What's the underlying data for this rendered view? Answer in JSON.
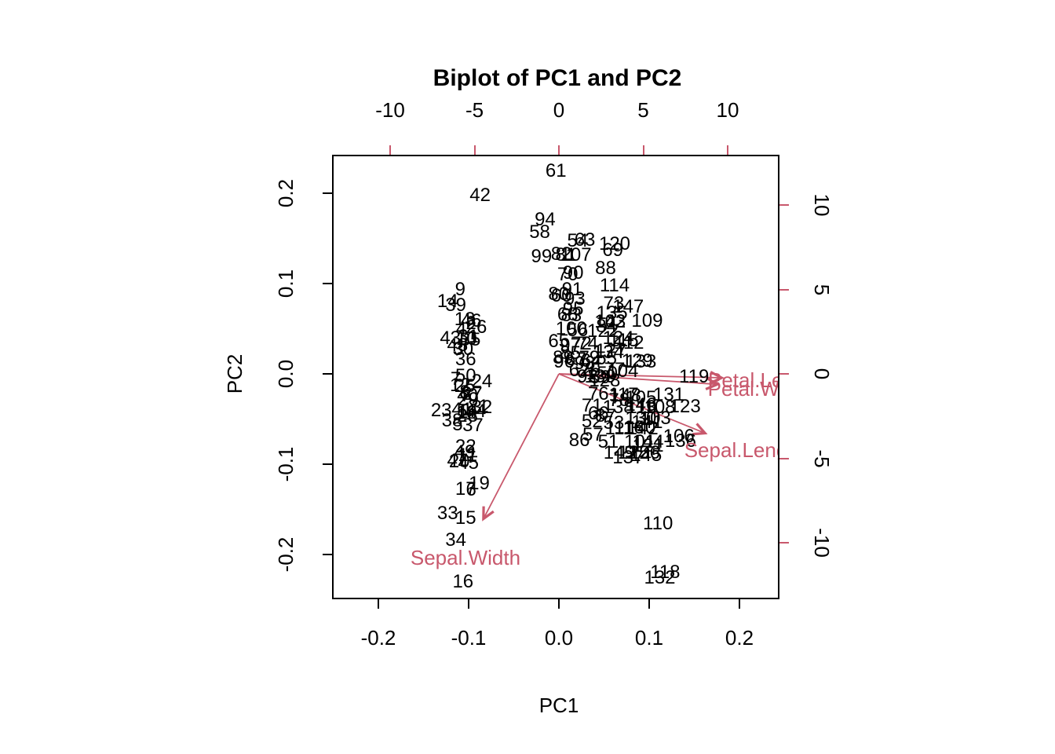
{
  "title": "Biplot of PC1 and PC2",
  "colors": {
    "frame": "#000000",
    "point_text": "#000000",
    "loading_accent": "#C8586C"
  },
  "axes": {
    "bottom": {
      "label": "PC1",
      "ticks": [
        "-0.2",
        "-0.1",
        "0.0",
        "0.1",
        "0.2"
      ]
    },
    "left": {
      "label": "PC2",
      "ticks": [
        "-0.2",
        "-0.1",
        "0.0",
        "0.1",
        "0.2"
      ]
    },
    "top": {
      "ticks": [
        "-10",
        "-5",
        "0",
        "5",
        "10"
      ]
    },
    "right": {
      "ticks": [
        "-10",
        "-5",
        "0",
        "5",
        "10"
      ]
    }
  },
  "chart_data": {
    "type": "scatter",
    "subtype": "pca-biplot",
    "title": "Biplot of PC1 and PC2",
    "xlabel": "PC1",
    "ylabel": "PC2",
    "score_axes": {
      "xlim": [
        -0.25,
        0.25
      ],
      "ylim": [
        -0.25,
        0.24
      ],
      "tick_step": 0.1
    },
    "loading_axes": {
      "xlim": [
        -13.4,
        13.1
      ],
      "ylim": [
        -13.3,
        13.0
      ],
      "tick_step": 5
    },
    "grid": false,
    "legend": "none",
    "arrow_shrink": 0.8,
    "arrows": [
      {
        "name": "Sepal.Length",
        "x": 10.9,
        "y": -4.42
      },
      {
        "name": "Sepal.Width",
        "x": -5.63,
        "y": -10.81
      },
      {
        "name": "Petal.Length",
        "x": 12.14,
        "y": -0.29
      },
      {
        "name": "Petal.Width",
        "x": 11.82,
        "y": -0.78
      }
    ],
    "points": [
      {
        "n": "1",
        "x": -0.108,
        "y": -0.041
      },
      {
        "n": "2",
        "x": -0.099,
        "y": 0.057
      },
      {
        "n": "3",
        "x": -0.113,
        "y": 0.029
      },
      {
        "n": "4",
        "x": -0.11,
        "y": 0.051
      },
      {
        "n": "5",
        "x": -0.114,
        "y": -0.055
      },
      {
        "n": "6",
        "x": -0.099,
        "y": -0.127
      },
      {
        "n": "7",
        "x": -0.116,
        "y": -0.004
      },
      {
        "n": "8",
        "x": -0.106,
        "y": -0.019
      },
      {
        "n": "9",
        "x": -0.111,
        "y": 0.095
      },
      {
        "n": "10",
        "x": -0.104,
        "y": 0.04
      },
      {
        "n": "11",
        "x": -0.103,
        "y": -0.089
      },
      {
        "n": "12",
        "x": -0.111,
        "y": -0.011
      },
      {
        "n": "13",
        "x": -0.106,
        "y": 0.062
      },
      {
        "n": "14",
        "x": -0.125,
        "y": 0.082
      },
      {
        "n": "15",
        "x": -0.105,
        "y": -0.158
      },
      {
        "n": "16",
        "x": -0.108,
        "y": -0.229
      },
      {
        "n": "17",
        "x": -0.105,
        "y": -0.126
      },
      {
        "n": "18",
        "x": -0.104,
        "y": -0.042
      },
      {
        "n": "19",
        "x": -0.09,
        "y": -0.12
      },
      {
        "n": "20",
        "x": -0.112,
        "y": -0.096
      },
      {
        "n": "21",
        "x": -0.091,
        "y": -0.035
      },
      {
        "n": "22",
        "x": -0.105,
        "y": -0.079
      },
      {
        "n": "23",
        "x": -0.132,
        "y": -0.039
      },
      {
        "n": "24",
        "x": -0.087,
        "y": -0.007
      },
      {
        "n": "25",
        "x": -0.106,
        "y": -0.012
      },
      {
        "n": "26",
        "x": -0.093,
        "y": 0.053
      },
      {
        "n": "27",
        "x": -0.098,
        "y": -0.021
      },
      {
        "n": "28",
        "x": -0.103,
        "y": -0.045
      },
      {
        "n": "29",
        "x": -0.102,
        "y": -0.027
      },
      {
        "n": "30",
        "x": -0.108,
        "y": 0.029
      },
      {
        "n": "31",
        "x": -0.102,
        "y": 0.043
      },
      {
        "n": "32",
        "x": -0.087,
        "y": -0.036
      },
      {
        "n": "33",
        "x": -0.125,
        "y": -0.153
      },
      {
        "n": "34",
        "x": -0.116,
        "y": -0.183
      },
      {
        "n": "35",
        "x": -0.1,
        "y": 0.039
      },
      {
        "n": "36",
        "x": -0.105,
        "y": 0.017
      },
      {
        "n": "37",
        "x": -0.097,
        "y": -0.056
      },
      {
        "n": "38",
        "x": -0.12,
        "y": -0.05
      },
      {
        "n": "39",
        "x": -0.116,
        "y": 0.077
      },
      {
        "n": "40",
        "x": -0.103,
        "y": -0.023
      },
      {
        "n": "41",
        "x": -0.109,
        "y": -0.038
      },
      {
        "n": "42",
        "x": -0.089,
        "y": 0.199
      },
      {
        "n": "43",
        "x": -0.122,
        "y": 0.041
      },
      {
        "n": "44",
        "x": -0.094,
        "y": -0.04
      },
      {
        "n": "45",
        "x": -0.102,
        "y": -0.097
      },
      {
        "n": "46",
        "x": -0.099,
        "y": 0.06
      },
      {
        "n": "47",
        "x": -0.114,
        "y": -0.095
      },
      {
        "n": "48",
        "x": -0.114,
        "y": 0.033
      },
      {
        "n": "49",
        "x": -0.106,
        "y": -0.085
      },
      {
        "n": "50",
        "x": -0.105,
        "y": -0.001
      },
      {
        "n": "51",
        "x": 0.053,
        "y": -0.074
      },
      {
        "n": "52",
        "x": 0.035,
        "y": -0.051
      },
      {
        "n": "53",
        "x": 0.059,
        "y": -0.053
      },
      {
        "n": "54",
        "x": 0.019,
        "y": 0.149
      },
      {
        "n": "55",
        "x": 0.051,
        "y": 0.018
      },
      {
        "n": "56",
        "x": 0.019,
        "y": 0.05
      },
      {
        "n": "57",
        "x": 0.036,
        "y": -0.066
      },
      {
        "n": "58",
        "x": -0.023,
        "y": 0.158
      },
      {
        "n": "59",
        "x": 0.044,
        "y": -0.003
      },
      {
        "n": "60",
        "x": 0.001,
        "y": 0.088
      },
      {
        "n": "61",
        "x": -0.005,
        "y": 0.226
      },
      {
        "n": "62",
        "x": 0.021,
        "y": 0.005
      },
      {
        "n": "63",
        "x": 0.027,
        "y": 0.15
      },
      {
        "n": "64",
        "x": 0.034,
        "y": 0.016
      },
      {
        "n": "65",
        "x": -0.002,
        "y": 0.037
      },
      {
        "n": "66",
        "x": 0.042,
        "y": -0.043
      },
      {
        "n": "67",
        "x": 0.017,
        "y": 0.017
      },
      {
        "n": "68",
        "x": 0.008,
        "y": 0.067
      },
      {
        "n": "69",
        "x": 0.058,
        "y": 0.138
      },
      {
        "n": "70",
        "x": 0.008,
        "y": 0.111
      },
      {
        "n": "71",
        "x": 0.035,
        "y": -0.034
      },
      {
        "n": "72",
        "x": 0.023,
        "y": 0.035
      },
      {
        "n": "73",
        "x": 0.059,
        "y": 0.079
      },
      {
        "n": "74",
        "x": 0.03,
        "y": 0.035
      },
      {
        "n": "75",
        "x": 0.033,
        "y": 0.005
      },
      {
        "n": "76",
        "x": 0.042,
        "y": -0.021
      },
      {
        "n": "77",
        "x": 0.06,
        "y": 0.006
      },
      {
        "n": "78",
        "x": 0.065,
        "y": -0.028
      },
      {
        "n": "79",
        "x": 0.032,
        "y": 0.019
      },
      {
        "n": "80",
        "x": -0.002,
        "y": 0.09
      },
      {
        "n": "81",
        "x": 0.006,
        "y": 0.133
      },
      {
        "n": "82",
        "x": 0.001,
        "y": 0.134
      },
      {
        "n": "83",
        "x": 0.012,
        "y": 0.066
      },
      {
        "n": "84",
        "x": 0.051,
        "y": 0.054
      },
      {
        "n": "85",
        "x": 0.011,
        "y": 0.024
      },
      {
        "n": "86",
        "x": 0.021,
        "y": -0.072
      },
      {
        "n": "87",
        "x": 0.05,
        "y": -0.045
      },
      {
        "n": "88",
        "x": 0.05,
        "y": 0.118
      },
      {
        "n": "89",
        "x": 0.003,
        "y": 0.019
      },
      {
        "n": "90",
        "x": 0.014,
        "y": 0.113
      },
      {
        "n": "91",
        "x": 0.013,
        "y": 0.095
      },
      {
        "n": "92",
        "x": 0.03,
        "y": -0.002
      },
      {
        "n": "93",
        "x": 0.016,
        "y": 0.084
      },
      {
        "n": "94",
        "x": -0.017,
        "y": 0.172
      },
      {
        "n": "95",
        "x": 0.014,
        "y": 0.073
      },
      {
        "n": "96",
        "x": 0.004,
        "y": 0.015
      },
      {
        "n": "97",
        "x": 0.011,
        "y": 0.033
      },
      {
        "n": "98",
        "x": 0.027,
        "y": 0.013
      },
      {
        "n": "99",
        "x": -0.021,
        "y": 0.131
      },
      {
        "n": "100",
        "x": 0.012,
        "y": 0.051
      },
      {
        "n": "101",
        "x": 0.088,
        "y": -0.074
      },
      {
        "n": "102",
        "x": 0.055,
        "y": 0.059
      },
      {
        "n": "103",
        "x": 0.105,
        "y": -0.048
      },
      {
        "n": "104",
        "x": 0.069,
        "y": 0.004
      },
      {
        "n": "105",
        "x": 0.089,
        "y": -0.025
      },
      {
        "n": "106",
        "x": 0.131,
        "y": -0.068
      },
      {
        "n": "107",
        "x": 0.017,
        "y": 0.133
      },
      {
        "n": "108",
        "x": 0.11,
        "y": -0.036
      },
      {
        "n": "109",
        "x": 0.096,
        "y": 0.06
      },
      {
        "n": "110",
        "x": 0.108,
        "y": -0.164
      },
      {
        "n": "111",
        "x": 0.065,
        "y": -0.059
      },
      {
        "n": "112",
        "x": 0.076,
        "y": 0.036
      },
      {
        "n": "113",
        "x": 0.09,
        "y": -0.036
      },
      {
        "n": "114",
        "x": 0.06,
        "y": 0.099
      },
      {
        "n": "115",
        "x": 0.07,
        "y": 0.038
      },
      {
        "n": "116",
        "x": 0.076,
        "y": -0.058
      },
      {
        "n": "117",
        "x": 0.07,
        "y": -0.022
      },
      {
        "n": "118",
        "x": 0.116,
        "y": -0.218
      },
      {
        "n": "119",
        "x": 0.148,
        "y": -0.002
      },
      {
        "n": "120",
        "x": 0.06,
        "y": 0.145
      },
      {
        "n": "121",
        "x": 0.097,
        "y": -0.078
      },
      {
        "n": "122",
        "x": 0.047,
        "y": 0.049
      },
      {
        "n": "123",
        "x": 0.138,
        "y": -0.035
      },
      {
        "n": "124",
        "x": 0.064,
        "y": 0.041
      },
      {
        "n": "125",
        "x": 0.081,
        "y": -0.086
      },
      {
        "n": "126",
        "x": 0.093,
        "y": -0.086
      },
      {
        "n": "127",
        "x": 0.056,
        "y": 0.027
      },
      {
        "n": "128",
        "x": 0.049,
        "y": -0.006
      },
      {
        "n": "129",
        "x": 0.085,
        "y": 0.016
      },
      {
        "n": "130",
        "x": 0.089,
        "y": -0.048
      },
      {
        "n": "131",
        "x": 0.12,
        "y": -0.022
      },
      {
        "n": "132",
        "x": 0.11,
        "y": -0.224
      },
      {
        "n": "133",
        "x": 0.089,
        "y": 0.015
      },
      {
        "n": "134",
        "x": 0.053,
        "y": 0.025
      },
      {
        "n": "135",
        "x": 0.057,
        "y": 0.069
      },
      {
        "n": "136",
        "x": 0.133,
        "y": -0.073
      },
      {
        "n": "137",
        "x": 0.075,
        "y": -0.091
      },
      {
        "n": "138",
        "x": 0.064,
        "y": -0.036
      },
      {
        "n": "139",
        "x": 0.044,
        "y": -0.002
      },
      {
        "n": "140",
        "x": 0.088,
        "y": -0.058
      },
      {
        "n": "141",
        "x": 0.096,
        "y": -0.052
      },
      {
        "n": "142",
        "x": 0.091,
        "y": -0.059
      },
      {
        "n": "143",
        "x": 0.055,
        "y": 0.059
      },
      {
        "n": "144",
        "x": 0.097,
        "y": -0.074
      },
      {
        "n": "145",
        "x": 0.095,
        "y": -0.089
      },
      {
        "n": "146",
        "x": 0.089,
        "y": -0.033
      },
      {
        "n": "147",
        "x": 0.075,
        "y": 0.076
      },
      {
        "n": "148",
        "x": 0.072,
        "y": -0.023
      },
      {
        "n": "149",
        "x": 0.065,
        "y": -0.086
      },
      {
        "n": "150",
        "x": 0.046,
        "y": 0.002
      }
    ]
  }
}
